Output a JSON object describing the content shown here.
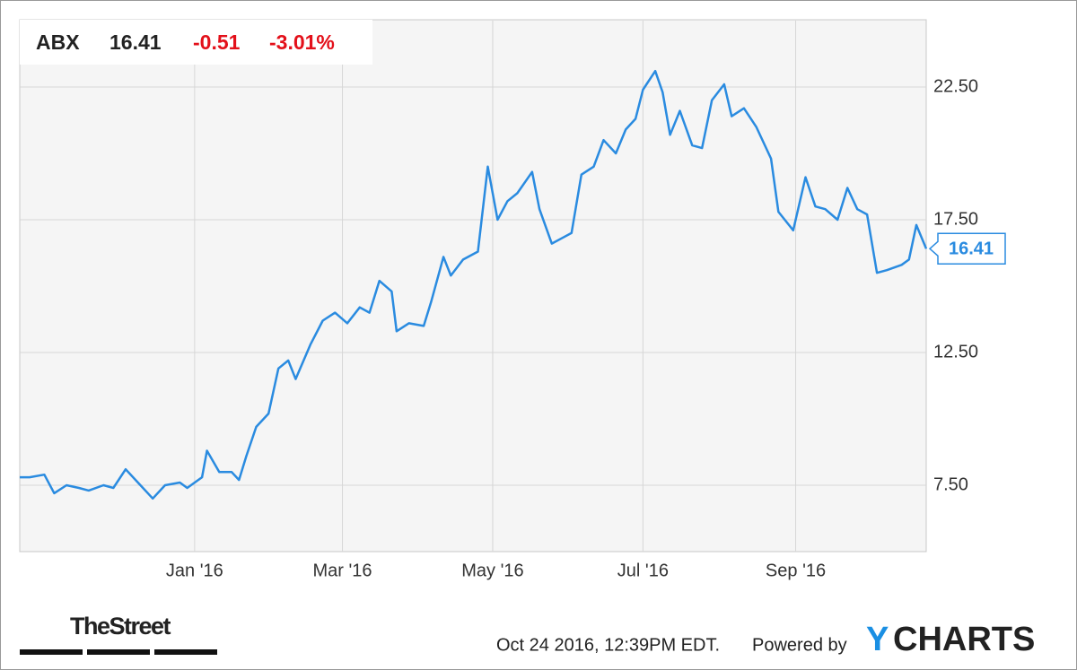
{
  "chart_data": {
    "type": "line",
    "header": {
      "price": "16.41",
      "change": "-0.51",
      "change_pct": "-3.01%"
    },
    "x": [
      "2015-10-22",
      "2015-10-26",
      "2015-11-01",
      "2015-11-05",
      "2015-11-10",
      "2015-11-15",
      "2015-11-19",
      "2015-11-25",
      "2015-11-29",
      "2015-12-04",
      "2015-12-09",
      "2015-12-15",
      "2015-12-20",
      "2015-12-26",
      "2015-12-29",
      "2016-01-04",
      "2016-01-06",
      "2016-01-11",
      "2016-01-16",
      "2016-01-19",
      "2016-01-22",
      "2016-01-26",
      "2016-01-31",
      "2016-02-04",
      "2016-02-08",
      "2016-02-11",
      "2016-02-17",
      "2016-02-22",
      "2016-02-27",
      "2016-03-03",
      "2016-03-08",
      "2016-03-12",
      "2016-03-16",
      "2016-03-21",
      "2016-03-23",
      "2016-03-28",
      "2016-04-03",
      "2016-04-06",
      "2016-04-11",
      "2016-04-14",
      "2016-04-19",
      "2016-04-25",
      "2016-04-29",
      "2016-05-03",
      "2016-05-07",
      "2016-05-11",
      "2016-05-17",
      "2016-05-20",
      "2016-05-25",
      "2016-05-29",
      "2016-06-02",
      "2016-06-06",
      "2016-06-11",
      "2016-06-15",
      "2016-06-20",
      "2016-06-24",
      "2016-06-28",
      "2016-07-01",
      "2016-07-06",
      "2016-07-09",
      "2016-07-12",
      "2016-07-16",
      "2016-07-21",
      "2016-07-25",
      "2016-07-29",
      "2016-08-03",
      "2016-08-06",
      "2016-08-11",
      "2016-08-16",
      "2016-08-22",
      "2016-08-25",
      "2016-08-31",
      "2016-09-05",
      "2016-09-09",
      "2016-09-13",
      "2016-09-18",
      "2016-09-22",
      "2016-09-26",
      "2016-09-30",
      "2016-10-04",
      "2016-10-08",
      "2016-10-14",
      "2016-10-17",
      "2016-10-20",
      "2016-10-24"
    ],
    "series": [
      {
        "name": "ABX",
        "color": "#2a8be0",
        "values": [
          7.8,
          7.8,
          7.9,
          7.2,
          7.5,
          7.4,
          7.3,
          7.5,
          7.4,
          8.1,
          7.6,
          7.0,
          7.5,
          7.6,
          7.4,
          7.8,
          8.8,
          8.0,
          8.0,
          7.7,
          8.6,
          9.7,
          10.2,
          11.9,
          12.2,
          11.5,
          12.8,
          13.7,
          14.0,
          13.6,
          14.2,
          14.0,
          15.2,
          14.8,
          13.3,
          13.6,
          13.5,
          14.4,
          16.1,
          15.4,
          16.0,
          16.3,
          19.5,
          17.5,
          18.2,
          18.5,
          19.3,
          17.9,
          16.6,
          16.8,
          17.0,
          19.2,
          19.5,
          20.5,
          20.0,
          20.9,
          21.3,
          22.4,
          23.1,
          22.3,
          20.7,
          21.6,
          20.3,
          20.2,
          22.0,
          22.6,
          21.4,
          21.7,
          21.0,
          19.8,
          17.8,
          17.1,
          19.1,
          18.0,
          17.9,
          17.5,
          18.7,
          17.9,
          17.7,
          15.5,
          15.6,
          15.8,
          16.0,
          17.3,
          16.41
        ]
      }
    ],
    "xlim": [
      "2015-10-22",
      "2016-10-24"
    ],
    "xticks": [
      {
        "value": "2016-01",
        "label": "Jan '16"
      },
      {
        "value": "2016-03",
        "label": "Mar '16"
      },
      {
        "value": "2016-05",
        "label": "May '16"
      },
      {
        "value": "2016-07",
        "label": "Jul '16"
      },
      {
        "value": "2016-09",
        "label": "Sep '16"
      }
    ],
    "ylim": [
      5,
      25
    ],
    "yticks": [
      {
        "value": 7.5,
        "label": "7.50"
      },
      {
        "value": 12.5,
        "label": "12.50"
      },
      {
        "value": 17.5,
        "label": "17.50"
      },
      {
        "value": 22.5,
        "label": "22.50"
      }
    ],
    "grid": true,
    "footer": {
      "timestamp": "Oct 24 2016, 12:39PM EDT.",
      "powered_by": "Powered by",
      "brand_y": "Y",
      "brand_rest": "CHARTS",
      "publisher": "TheStreet"
    }
  }
}
